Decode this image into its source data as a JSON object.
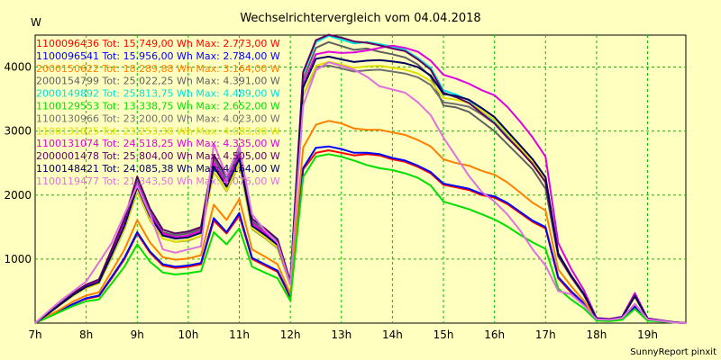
{
  "chart_data": {
    "type": "line",
    "title": "Wechselrichtervergleich vom 04.04.2018",
    "ylabel": "W",
    "xlabel": "",
    "ylim": [
      0,
      4500
    ],
    "xlim": [
      7,
      19.75
    ],
    "grid": true,
    "legend_placement": "top-left",
    "y_ticks": [
      1000,
      2000,
      3000,
      4000
    ],
    "x_ticks": [
      {
        "value": 7,
        "label": "7h"
      },
      {
        "value": 8,
        "label": "8h"
      },
      {
        "value": 9,
        "label": "9h"
      },
      {
        "value": 10,
        "label": "10h"
      },
      {
        "value": 11,
        "label": "11h"
      },
      {
        "value": 12,
        "label": "12h"
      },
      {
        "value": 13,
        "label": "13h"
      },
      {
        "value": 14,
        "label": "14h"
      },
      {
        "value": 15,
        "label": "15h"
      },
      {
        "value": 16,
        "label": "16h"
      },
      {
        "value": 17,
        "label": "17h"
      },
      {
        "value": 18,
        "label": "18h"
      },
      {
        "value": 19,
        "label": "19h"
      }
    ],
    "x": [
      7.0,
      7.25,
      7.5,
      7.75,
      8.0,
      8.25,
      8.5,
      8.75,
      9.0,
      9.25,
      9.5,
      9.75,
      10.0,
      10.25,
      10.5,
      10.75,
      11.0,
      11.25,
      11.5,
      11.75,
      12.0,
      12.25,
      12.5,
      12.75,
      13.0,
      13.25,
      13.5,
      13.75,
      14.0,
      14.25,
      14.5,
      14.75,
      15.0,
      15.25,
      15.5,
      15.75,
      16.0,
      16.25,
      16.5,
      16.75,
      17.0,
      17.25,
      17.5,
      17.75,
      18.0,
      18.25,
      18.5,
      18.75,
      19.0,
      19.25,
      19.5,
      19.75
    ],
    "series": [
      {
        "name": "1100096436 Tot: 15.749,00 Wh Max: 2.773,00 W",
        "color": "#ff0000",
        "values": [
          0,
          100,
          200,
          300,
          380,
          420,
          700,
          1000,
          1400,
          1100,
          900,
          860,
          880,
          920,
          1600,
          1400,
          1680,
          1000,
          900,
          800,
          400,
          2400,
          2660,
          2700,
          2660,
          2620,
          2640,
          2620,
          2560,
          2520,
          2440,
          2340,
          2160,
          2120,
          2080,
          2000,
          1960,
          1860,
          1720,
          1580,
          1480,
          700,
          480,
          300,
          50,
          40,
          60,
          250,
          50,
          30,
          10,
          0
        ]
      },
      {
        "name": "1100096541 Tot: 15.956,00 Wh Max: 2.784,00 W",
        "color": "#0000ff",
        "values": [
          0,
          100,
          200,
          300,
          390,
          430,
          720,
          1020,
          1420,
          1120,
          920,
          880,
          900,
          940,
          1640,
          1420,
          1720,
          1020,
          920,
          820,
          420,
          2420,
          2740,
          2760,
          2720,
          2660,
          2660,
          2640,
          2580,
          2540,
          2460,
          2360,
          2180,
          2140,
          2100,
          2020,
          1980,
          1880,
          1740,
          1600,
          1500,
          720,
          500,
          310,
          50,
          40,
          60,
          260,
          50,
          30,
          10,
          0
        ]
      },
      {
        "name": "2000150622 Tot: 18.289,88 Wh Max: 3.164,00 W",
        "color": "#ff8000",
        "values": [
          0,
          110,
          220,
          340,
          430,
          480,
          810,
          1150,
          1610,
          1260,
          1030,
          990,
          1010,
          1060,
          1850,
          1610,
          1940,
          1150,
          1040,
          920,
          460,
          2740,
          3100,
          3160,
          3120,
          3040,
          3020,
          3020,
          2980,
          2940,
          2860,
          2760,
          2560,
          2500,
          2460,
          2380,
          2320,
          2200,
          2040,
          1880,
          1760,
          840,
          580,
          350,
          55,
          45,
          70,
          300,
          55,
          35,
          10,
          0
        ]
      },
      {
        "name": "2000154799 Tot: 25.022,25 Wh Max: 4.391,00 W",
        "color": "#606060",
        "values": [
          0,
          150,
          300,
          460,
          590,
          660,
          1120,
          1590,
          2230,
          1740,
          1420,
          1370,
          1400,
          1470,
          2570,
          2230,
          2690,
          1590,
          1440,
          1270,
          640,
          3800,
          4300,
          4390,
          4330,
          4270,
          4290,
          4240,
          4200,
          4150,
          4040,
          3850,
          3400,
          3370,
          3300,
          3150,
          3000,
          2800,
          2600,
          2400,
          2100,
          1040,
          720,
          440,
          70,
          60,
          90,
          420,
          70,
          40,
          15,
          0
        ]
      },
      {
        "name": "2000149892 Tot: 25.813,75 Wh Max: 4.489,00 W",
        "color": "#00e0e0",
        "values": [
          0,
          150,
          310,
          470,
          600,
          680,
          1140,
          1630,
          2280,
          1780,
          1460,
          1400,
          1430,
          1500,
          2630,
          2280,
          2750,
          1630,
          1470,
          1300,
          650,
          3890,
          4390,
          4489,
          4430,
          4370,
          4390,
          4360,
          4320,
          4270,
          4140,
          3990,
          3640,
          3570,
          3480,
          3320,
          3160,
          2940,
          2740,
          2520,
          2240,
          1080,
          740,
          450,
          70,
          60,
          90,
          430,
          70,
          40,
          15,
          0
        ]
      },
      {
        "name": "1100129553 Tot: 13.338,75 Wh Max: 2.652,00 W",
        "color": "#00e000",
        "values": [
          0,
          90,
          180,
          270,
          340,
          370,
          620,
          880,
          1230,
          960,
          790,
          760,
          780,
          810,
          1420,
          1230,
          1480,
          880,
          790,
          700,
          350,
          2280,
          2600,
          2640,
          2600,
          2540,
          2470,
          2420,
          2390,
          2340,
          2270,
          2150,
          1900,
          1840,
          1780,
          1700,
          1620,
          1510,
          1380,
          1260,
          1160,
          540,
          370,
          230,
          40,
          30,
          50,
          220,
          40,
          25,
          10,
          0
        ]
      },
      {
        "name": "1100130966 Tot: 23.200,00 Wh Max: 4.023,00 W",
        "color": "#707070",
        "values": [
          0,
          140,
          290,
          430,
          550,
          620,
          1030,
          1470,
          2060,
          1610,
          1320,
          1270,
          1290,
          1360,
          2370,
          2060,
          2480,
          1470,
          1330,
          1170,
          590,
          3550,
          4000,
          4023,
          3980,
          3930,
          3950,
          3960,
          3930,
          3900,
          3840,
          3720,
          3450,
          3420,
          3380,
          3260,
          3120,
          2910,
          2700,
          2480,
          2210,
          1060,
          720,
          440,
          70,
          60,
          90,
          410,
          70,
          40,
          15,
          0
        ]
      },
      {
        "name": "1100131025 Tot: 23.253,38 Wh Max: 4.083,00 W",
        "color": "#e0e000",
        "values": [
          0,
          140,
          290,
          430,
          550,
          620,
          1040,
          1480,
          2070,
          1620,
          1320,
          1270,
          1300,
          1360,
          2380,
          2070,
          2490,
          1480,
          1340,
          1180,
          590,
          3560,
          4020,
          4083,
          4040,
          3990,
          4010,
          4020,
          3990,
          3960,
          3900,
          3780,
          3520,
          3490,
          3440,
          3320,
          3180,
          2960,
          2740,
          2520,
          2240,
          1070,
          730,
          450,
          70,
          60,
          90,
          410,
          70,
          40,
          15,
          0
        ]
      },
      {
        "name": "1100131074 Tot: 24.518,25 Wh Max: 4.335,00 W",
        "color": "#e000e0",
        "values": [
          0,
          150,
          300,
          450,
          580,
          650,
          1100,
          1560,
          2180,
          1710,
          1400,
          1340,
          1370,
          1440,
          2510,
          2180,
          2630,
          1560,
          1410,
          1250,
          620,
          3720,
          4200,
          4240,
          4220,
          4230,
          4260,
          4300,
          4335,
          4300,
          4240,
          4100,
          3880,
          3820,
          3740,
          3640,
          3560,
          3380,
          3150,
          2900,
          2600,
          1250,
          850,
          520,
          80,
          65,
          100,
          470,
          75,
          45,
          15,
          0
        ]
      },
      {
        "name": "2000001478 Tot: 25.804,00 Wh Max: 4.505,00 W",
        "color": "#600060",
        "values": [
          0,
          150,
          310,
          470,
          600,
          680,
          1150,
          1630,
          2290,
          1790,
          1460,
          1400,
          1430,
          1500,
          2630,
          2290,
          2760,
          1630,
          1480,
          1310,
          650,
          3920,
          4420,
          4505,
          4460,
          4400,
          4380,
          4340,
          4290,
          4250,
          4120,
          3960,
          3600,
          3530,
          3440,
          3280,
          3120,
          2900,
          2700,
          2480,
          2200,
          1060,
          730,
          450,
          70,
          60,
          90,
          430,
          70,
          40,
          15,
          0
        ]
      },
      {
        "name": "1100148421 Tot: 24.085,38 Wh Max: 4.164,00 W",
        "color": "#000060",
        "values": [
          0,
          145,
          295,
          445,
          565,
          640,
          1070,
          1520,
          2130,
          1670,
          1370,
          1320,
          1340,
          1410,
          2450,
          2130,
          2570,
          1520,
          1380,
          1220,
          610,
          3680,
          4130,
          4164,
          4120,
          4080,
          4100,
          4110,
          4090,
          4060,
          4000,
          3870,
          3580,
          3550,
          3490,
          3360,
          3220,
          3000,
          2780,
          2560,
          2280,
          1090,
          750,
          460,
          70,
          60,
          90,
          420,
          70,
          40,
          15,
          0
        ]
      },
      {
        "name": "1100119477 Tot: 21.343,50 Wh Max: 4.076,00 W",
        "color": "#e070e0",
        "values": [
          0,
          180,
          350,
          500,
          650,
          950,
          1250,
          1700,
          2150,
          1700,
          1150,
          1100,
          1150,
          1200,
          2800,
          2300,
          2750,
          1700,
          1450,
          1250,
          600,
          3400,
          3950,
          4076,
          4020,
          3960,
          3850,
          3700,
          3650,
          3600,
          3450,
          3250,
          2900,
          2600,
          2300,
          2050,
          1900,
          1700,
          1450,
          1150,
          900,
          500,
          450,
          280,
          60,
          50,
          80,
          300,
          60,
          35,
          10,
          0
        ]
      }
    ]
  },
  "footer": "SunnyReport pinxit"
}
